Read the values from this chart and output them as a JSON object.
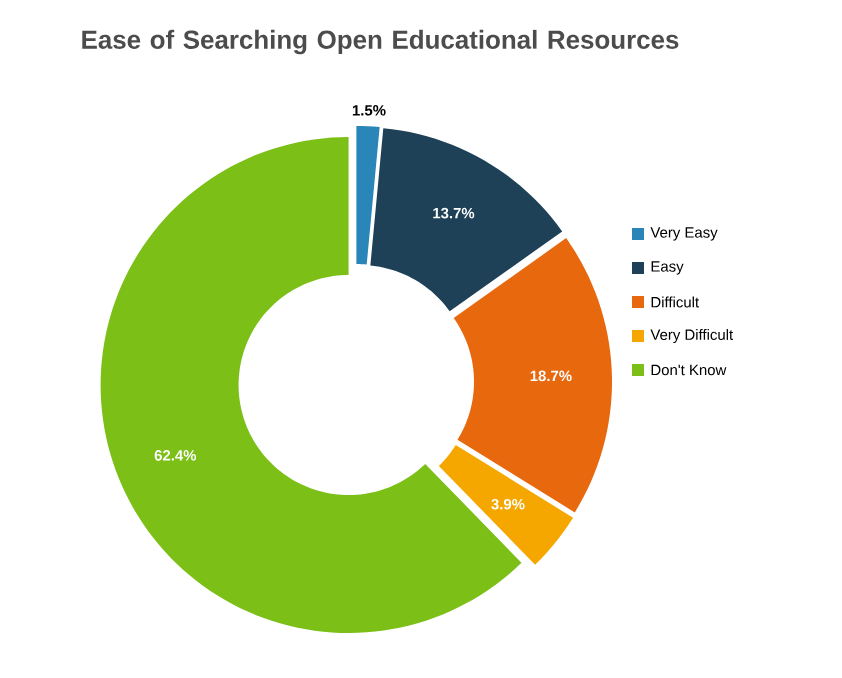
{
  "chart_data": {
    "type": "donut",
    "title": "Ease of Searching Open Educational Resources",
    "categories": [
      "Very Easy",
      "Easy",
      "Difficult",
      "Very Difficult",
      "Don't Know"
    ],
    "values": [
      1.5,
      13.7,
      18.7,
      3.9,
      62.4
    ],
    "value_labels": [
      "1.5%",
      "13.7%",
      "18.7%",
      "3.9%",
      "62.4%"
    ],
    "colors": [
      "#2a86b9",
      "#1e4158",
      "#e8680e",
      "#f5a700",
      "#7bbf17"
    ],
    "legend": "right"
  }
}
